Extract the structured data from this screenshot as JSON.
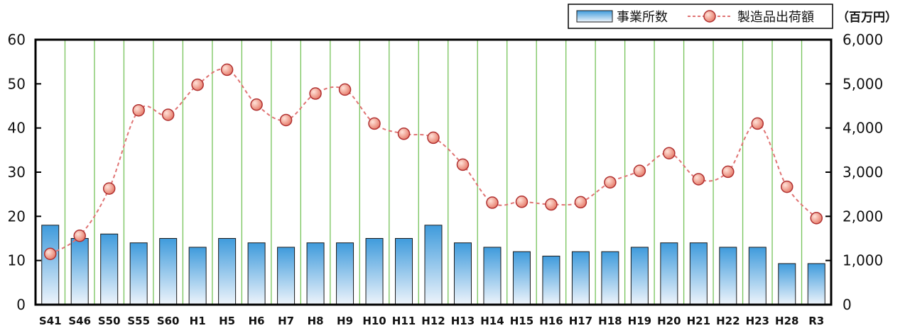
{
  "chart_data": {
    "type": "bar",
    "categories": [
      "S41",
      "S46",
      "S50",
      "S55",
      "S60",
      "H1",
      "H5",
      "H6",
      "H7",
      "H8",
      "H9",
      "H10",
      "H11",
      "H12",
      "H13",
      "H14",
      "H15",
      "H16",
      "H17",
      "H18",
      "H19",
      "H20",
      "H21",
      "H22",
      "H23",
      "H28",
      "R3"
    ],
    "series": [
      {
        "name": "事業所数",
        "type": "bar",
        "axis": "left",
        "values": [
          18,
          15,
          16,
          14,
          15,
          13,
          15,
          14,
          13,
          14,
          14,
          15,
          15,
          18,
          14,
          13,
          12,
          11,
          12,
          12,
          13,
          14,
          14,
          13,
          13,
          9.3,
          9.3
        ]
      },
      {
        "name": "製造品出荷額",
        "type": "line",
        "axis": "right",
        "values": [
          1150,
          1560,
          2630,
          4400,
          4300,
          4980,
          5320,
          4530,
          4180,
          4780,
          4870,
          4100,
          3870,
          3780,
          3170,
          2310,
          2330,
          2270,
          2320,
          2770,
          3030,
          3430,
          2840,
          3010,
          4100,
          2670,
          1960
        ]
      }
    ],
    "ylim_left": [
      0,
      60
    ],
    "yticks_left": [
      "0",
      "10",
      "20",
      "30",
      "40",
      "50",
      "60"
    ],
    "ylim_right": [
      0,
      6000
    ],
    "yticks_right": [
      "0",
      "1,000",
      "2,000",
      "3,000",
      "4,000",
      "5,000",
      "6,000"
    ],
    "unit_label": "（百万円）",
    "legend_position": "top-right",
    "grid": "vertical",
    "colors": {
      "bar_top": "#3f9bdc",
      "bar_bottom": "#eef4fb",
      "bar_edge": "#1a1a1a",
      "line": "#e07474",
      "marker_fill": "#f0a090",
      "marker_edge": "#b03030",
      "grid": "#76c35a",
      "axis": "#000000"
    }
  }
}
